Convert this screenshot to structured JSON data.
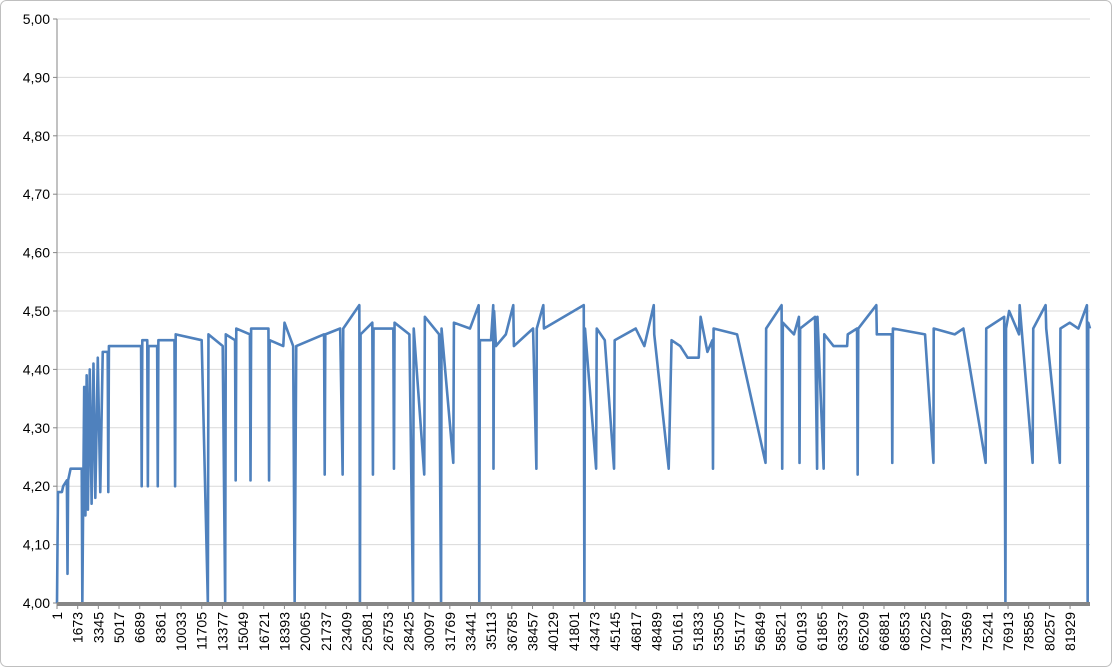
{
  "chart_data": {
    "type": "line",
    "color": "#4f81bd",
    "grid": true,
    "xlim": [
      1,
      83540
    ],
    "ylim": [
      4.0,
      5.0
    ],
    "yticks": [
      {
        "value": 4.0,
        "label": "4,00"
      },
      {
        "value": 4.1,
        "label": "4,10"
      },
      {
        "value": 4.2,
        "label": "4,20"
      },
      {
        "value": 4.3,
        "label": "4,30"
      },
      {
        "value": 4.4,
        "label": "4,40"
      },
      {
        "value": 4.5,
        "label": "4,50"
      },
      {
        "value": 4.6,
        "label": "4,60"
      },
      {
        "value": 4.7,
        "label": "4,70"
      },
      {
        "value": 4.8,
        "label": "4,80"
      },
      {
        "value": 4.9,
        "label": "4,90"
      },
      {
        "value": 5.0,
        "label": "5,00"
      }
    ],
    "xticks": [
      1,
      1673,
      3345,
      5017,
      6689,
      8361,
      10033,
      11705,
      13377,
      15049,
      16721,
      18393,
      20065,
      21737,
      23409,
      25081,
      26753,
      28425,
      30097,
      31769,
      33441,
      35113,
      36785,
      38457,
      40129,
      41801,
      43473,
      45145,
      46817,
      48489,
      50161,
      51833,
      53505,
      55177,
      56849,
      58521,
      60193,
      61865,
      63537,
      65209,
      66881,
      68553,
      70225,
      71897,
      73569,
      75241,
      76913,
      78585,
      80257,
      81929
    ],
    "x": [
      1,
      80,
      400,
      500,
      800,
      850,
      900,
      1100,
      2000,
      2050,
      2100,
      2200,
      2300,
      2400,
      2500,
      2650,
      2800,
      2950,
      3100,
      3300,
      3500,
      3700,
      4100,
      4150,
      4200,
      6800,
      6850,
      6900,
      7300,
      7350,
      7400,
      8100,
      8150,
      8200,
      9500,
      9550,
      9600,
      11700,
      12200,
      12250,
      13400,
      13600,
      13650,
      14400,
      14450,
      14500,
      15600,
      15650,
      15700,
      17100,
      17150,
      17200,
      18300,
      18400,
      19100,
      19220,
      19350,
      21600,
      21650,
      21700,
      22900,
      23100,
      23150,
      24450,
      24500,
      24550,
      25500,
      25550,
      25600,
      27200,
      27250,
      27300,
      28500,
      28790,
      28850,
      29700,
      29750,
      30900,
      31060,
      31100,
      32050,
      32100,
      33400,
      34100,
      34150,
      34200,
      35100,
      35280,
      35300,
      35350,
      35500,
      36300,
      36900,
      36950,
      38500,
      38770,
      38800,
      39330,
      39380,
      42600,
      42650,
      42700,
      43600,
      43650,
      44300,
      45050,
      45100,
      46800,
      47500,
      48260,
      48300,
      49470,
      49700,
      50400,
      51000,
      51900,
      52050,
      52600,
      53000,
      53050,
      53100,
      55000,
      57300,
      57350,
      58600,
      58650,
      58700,
      59600,
      60000,
      60050,
      60100,
      61300,
      61470,
      61500,
      62000,
      62050,
      62800,
      63900,
      63950,
      64700,
      64750,
      64800,
      66260,
      66300,
      67500,
      67550,
      67600,
      70200,
      70880,
      70900,
      72600,
      73300,
      75100,
      75150,
      76600,
      76700,
      76750,
      77000,
      77800,
      77850,
      78900,
      78950,
      79950,
      80000,
      81100,
      81150,
      81900,
      82600,
      83290,
      83350,
      83400,
      83540
    ],
    "values": [
      4.0,
      4.19,
      4.19,
      4.2,
      4.21,
      4.05,
      4.21,
      4.23,
      4.23,
      4.0,
      4.13,
      4.37,
      4.15,
      4.39,
      4.16,
      4.4,
      4.17,
      4.41,
      4.18,
      4.42,
      4.19,
      4.43,
      4.43,
      4.19,
      4.44,
      4.44,
      4.2,
      4.45,
      4.45,
      4.2,
      4.44,
      4.44,
      4.2,
      4.45,
      4.45,
      4.2,
      4.46,
      4.45,
      4.0,
      4.46,
      4.44,
      4.0,
      4.46,
      4.45,
      4.21,
      4.47,
      4.46,
      4.21,
      4.47,
      4.47,
      4.21,
      4.45,
      4.44,
      4.48,
      4.44,
      4.0,
      4.44,
      4.46,
      4.22,
      4.46,
      4.47,
      4.22,
      4.47,
      4.51,
      4.0,
      4.46,
      4.48,
      4.22,
      4.47,
      4.47,
      4.23,
      4.48,
      4.46,
      4.0,
      4.47,
      4.22,
      4.49,
      4.46,
      4.0,
      4.47,
      4.24,
      4.48,
      4.47,
      4.51,
      4.0,
      4.45,
      4.45,
      4.51,
      4.23,
      4.5,
      4.44,
      4.46,
      4.51,
      4.44,
      4.47,
      4.23,
      4.47,
      4.51,
      4.47,
      4.51,
      4.0,
      4.47,
      4.23,
      4.47,
      4.45,
      4.23,
      4.45,
      4.47,
      4.44,
      4.51,
      4.46,
      4.23,
      4.45,
      4.44,
      4.42,
      4.42,
      4.49,
      4.43,
      4.45,
      4.23,
      4.47,
      4.46,
      4.24,
      4.47,
      4.51,
      4.23,
      4.48,
      4.46,
      4.49,
      4.24,
      4.47,
      4.49,
      4.23,
      4.49,
      4.23,
      4.46,
      4.44,
      4.44,
      4.46,
      4.47,
      4.22,
      4.47,
      4.51,
      4.46,
      4.46,
      4.24,
      4.47,
      4.46,
      4.24,
      4.47,
      4.46,
      4.47,
      4.24,
      4.47,
      4.49,
      4.0,
      4.47,
      4.5,
      4.46,
      4.51,
      4.24,
      4.47,
      4.51,
      4.47,
      4.24,
      4.47,
      4.48,
      4.47,
      4.51,
      4.0,
      4.48,
      4.47
    ]
  }
}
